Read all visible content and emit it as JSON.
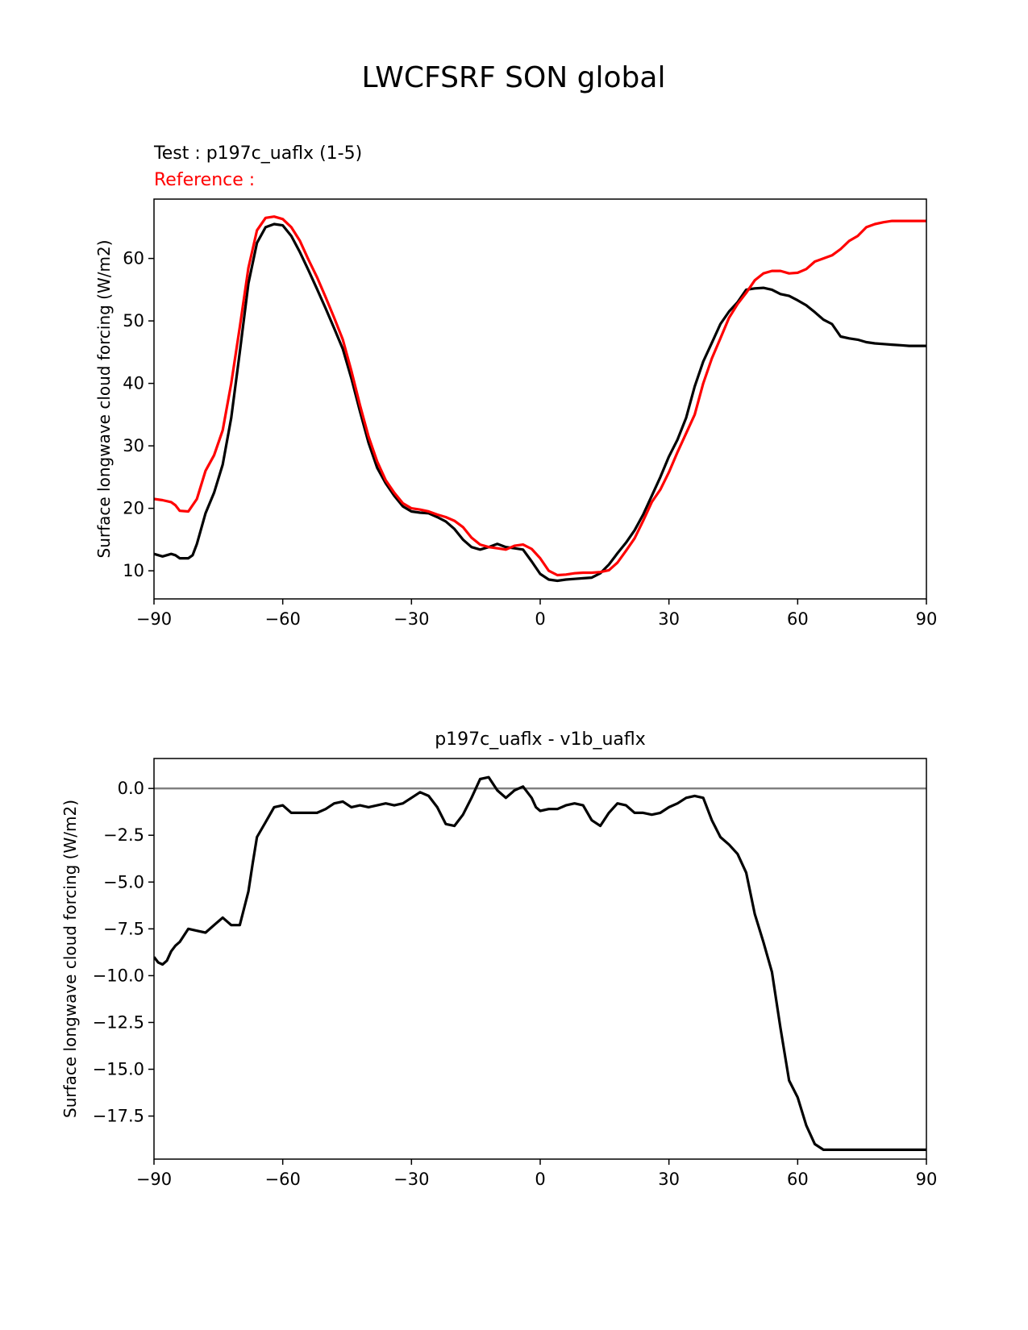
{
  "figure": {
    "title": "LWCFSRF SON global"
  },
  "chart_data": [
    {
      "type": "line",
      "test_label": "Test : p197c_uaflx (1-5)",
      "reference_label": "Reference :",
      "ylabel": "Surface longwave cloud forcing (W/m2)",
      "xlabel": "",
      "xlim": [
        -90,
        90
      ],
      "ylim": [
        5.5,
        69.5
      ],
      "xticks": [
        -90,
        -60,
        -30,
        0,
        30,
        60,
        90
      ],
      "xtick_labels": [
        "−90",
        "−60",
        "−30",
        "0",
        "30",
        "60",
        "90"
      ],
      "yticks": [
        10,
        20,
        30,
        40,
        50,
        60
      ],
      "ytick_labels": [
        "10",
        "20",
        "30",
        "40",
        "50",
        "60"
      ],
      "series": [
        {
          "color": "#000000",
          "x": [
            -90,
            -88,
            -86,
            -85,
            -84,
            -82,
            -81,
            -80,
            -78,
            -76,
            -74,
            -72,
            -70,
            -68,
            -66,
            -64,
            -62,
            -60,
            -58,
            -56,
            -54,
            -52,
            -50,
            -48,
            -46,
            -44,
            -42,
            -40,
            -38,
            -36,
            -34,
            -32,
            -30,
            -28,
            -26,
            -24,
            -22,
            -20,
            -18,
            -16,
            -14,
            -12,
            -10,
            -8,
            -6,
            -4,
            -2,
            0,
            2,
            4,
            6,
            8,
            10,
            12,
            14,
            16,
            18,
            20,
            22,
            24,
            26,
            28,
            30,
            32,
            34,
            36,
            38,
            40,
            42,
            44,
            46,
            48,
            50,
            52,
            54,
            56,
            58,
            60,
            62,
            64,
            66,
            68,
            70,
            72,
            74,
            76,
            78,
            80,
            82,
            84,
            86,
            88,
            90
          ],
          "values": [
            12.7,
            12.3,
            12.7,
            12.5,
            12.0,
            12.0,
            12.5,
            14.3,
            19.2,
            22.5,
            27.0,
            34.5,
            45.0,
            56.0,
            62.5,
            65.0,
            65.5,
            65.3,
            63.6,
            61.0,
            58.1,
            55.1,
            52.0,
            48.8,
            45.5,
            40.8,
            35.5,
            30.5,
            26.5,
            24.0,
            22.0,
            20.3,
            19.5,
            19.3,
            19.2,
            18.6,
            17.9,
            16.7,
            15.0,
            13.8,
            13.4,
            13.8,
            14.3,
            13.8,
            13.6,
            13.4,
            11.5,
            9.5,
            8.6,
            8.4,
            8.6,
            8.7,
            8.8,
            8.9,
            9.6,
            11.0,
            12.8,
            14.5,
            16.5,
            19.0,
            22.0,
            25.0,
            28.3,
            31.0,
            34.5,
            39.5,
            43.5,
            46.5,
            49.5,
            51.5,
            53.0,
            55.0,
            55.2,
            55.3,
            55.0,
            54.3,
            54.0,
            53.3,
            52.5,
            51.4,
            50.2,
            49.5,
            47.5,
            47.2,
            47.0,
            46.6,
            46.4,
            46.3,
            46.2,
            46.1,
            46.0,
            46.0,
            46.0
          ],
          "name": ""
        },
        {
          "color": "#ff0000",
          "x": [
            -90,
            -88,
            -86,
            -85,
            -84,
            -82,
            -80,
            -78,
            -76,
            -74,
            -72,
            -70,
            -68,
            -66,
            -64,
            -62,
            -60,
            -58,
            -56,
            -54,
            -52,
            -50,
            -48,
            -46,
            -44,
            -42,
            -40,
            -38,
            -36,
            -34,
            -32,
            -30,
            -28,
            -26,
            -24,
            -22,
            -20,
            -18,
            -16,
            -14,
            -12,
            -10,
            -8,
            -6,
            -4,
            -2,
            0,
            2,
            4,
            6,
            8,
            10,
            12,
            14,
            16,
            18,
            20,
            22,
            24,
            26,
            28,
            30,
            32,
            34,
            36,
            38,
            40,
            42,
            44,
            46,
            48,
            50,
            52,
            54,
            56,
            58,
            60,
            62,
            64,
            66,
            68,
            70,
            72,
            74,
            76,
            78,
            80,
            82,
            84,
            86,
            88,
            90
          ],
          "values": [
            21.5,
            21.3,
            21.0,
            20.5,
            19.6,
            19.5,
            21.5,
            26.0,
            28.5,
            32.5,
            40.0,
            49.0,
            58.5,
            64.5,
            66.5,
            66.7,
            66.3,
            65.0,
            62.8,
            59.8,
            57.0,
            53.8,
            50.5,
            47.0,
            42.0,
            36.5,
            31.5,
            27.5,
            24.5,
            22.5,
            20.8,
            20.0,
            19.8,
            19.5,
            19.0,
            18.6,
            18.0,
            17.0,
            15.3,
            14.2,
            13.8,
            13.6,
            13.4,
            14.0,
            14.2,
            13.5,
            12.0,
            10.0,
            9.3,
            9.4,
            9.6,
            9.7,
            9.7,
            9.8,
            10.1,
            11.3,
            13.2,
            15.2,
            18.0,
            21.0,
            23.0,
            25.8,
            29.0,
            32.0,
            35.0,
            40.0,
            44.0,
            47.2,
            50.5,
            52.7,
            54.5,
            56.5,
            57.6,
            58.0,
            58.0,
            57.6,
            57.7,
            58.3,
            59.5,
            60.0,
            60.5,
            61.5,
            62.8,
            63.6,
            65.0,
            65.5,
            65.8,
            66.0,
            66.0,
            66.0,
            66.0,
            66.0
          ],
          "name": ""
        }
      ]
    },
    {
      "type": "line",
      "title": "p197c_uaflx - v1b_uaflx",
      "ylabel": "Surface longwave cloud forcing (W/m2)",
      "xlabel": "",
      "xlim": [
        -90,
        90
      ],
      "ylim": [
        -19.8,
        1.6
      ],
      "xticks": [
        -90,
        -60,
        -30,
        0,
        30,
        60,
        90
      ],
      "xtick_labels": [
        "−90",
        "−60",
        "−30",
        "0",
        "30",
        "60",
        "90"
      ],
      "yticks": [
        0.0,
        -2.5,
        -5.0,
        -7.5,
        -10.0,
        -12.5,
        -15.0,
        -17.5
      ],
      "ytick_labels": [
        "0.0",
        "−2.5",
        "−5.0",
        "−7.5",
        "−10.0",
        "−12.5",
        "−15.0",
        "−17.5"
      ],
      "zero_line": {
        "value": 0,
        "color": "#808080"
      },
      "series": [
        {
          "color": "#000000",
          "x": [
            -90,
            -89,
            -88,
            -87,
            -86,
            -85,
            -84,
            -82,
            -80,
            -78,
            -76,
            -74,
            -72,
            -70,
            -68,
            -67,
            -66,
            -64,
            -62,
            -60,
            -58,
            -56,
            -54,
            -52,
            -50,
            -48,
            -46,
            -44,
            -42,
            -40,
            -38,
            -36,
            -34,
            -32,
            -30,
            -28,
            -26,
            -24,
            -22,
            -20,
            -18,
            -16,
            -14,
            -12,
            -10,
            -8,
            -6,
            -4,
            -2,
            -1,
            0,
            2,
            4,
            6,
            8,
            10,
            12,
            14,
            16,
            18,
            20,
            22,
            24,
            26,
            28,
            30,
            32,
            34,
            36,
            38,
            40,
            42,
            44,
            46,
            48,
            50,
            52,
            54,
            56,
            58,
            60,
            62,
            64,
            66,
            68,
            70,
            72,
            74,
            76,
            78,
            80,
            82,
            84,
            86,
            88,
            89,
            90
          ],
          "values": [
            -9.0,
            -9.3,
            -9.4,
            -9.2,
            -8.7,
            -8.4,
            -8.2,
            -7.5,
            -7.6,
            -7.7,
            -7.3,
            -6.9,
            -7.3,
            -7.3,
            -5.5,
            -4.0,
            -2.6,
            -1.8,
            -1.0,
            -0.9,
            -1.3,
            -1.3,
            -1.3,
            -1.3,
            -1.1,
            -0.8,
            -0.7,
            -1.0,
            -0.9,
            -1.0,
            -0.9,
            -0.8,
            -0.9,
            -0.8,
            -0.5,
            -0.2,
            -0.4,
            -1.0,
            -1.9,
            -2.0,
            -1.4,
            -0.5,
            0.5,
            0.6,
            -0.1,
            -0.5,
            -0.1,
            0.1,
            -0.5,
            -1.0,
            -1.2,
            -1.1,
            -1.1,
            -0.9,
            -0.8,
            -0.9,
            -1.7,
            -2.0,
            -1.3,
            -0.8,
            -0.9,
            -1.3,
            -1.3,
            -1.4,
            -1.3,
            -1.0,
            -0.8,
            -0.5,
            -0.4,
            -0.5,
            -1.7,
            -2.6,
            -3.0,
            -3.5,
            -4.5,
            -6.7,
            -8.2,
            -9.8,
            -12.8,
            -15.6,
            -16.5,
            -18.0,
            -19.0,
            -19.3,
            -19.3,
            -19.3,
            -19.3,
            -19.3,
            -19.3,
            -19.3,
            -19.3,
            -19.3,
            -19.3,
            -19.3,
            -19.3,
            -19.3,
            -19.3
          ],
          "name": ""
        }
      ]
    }
  ]
}
